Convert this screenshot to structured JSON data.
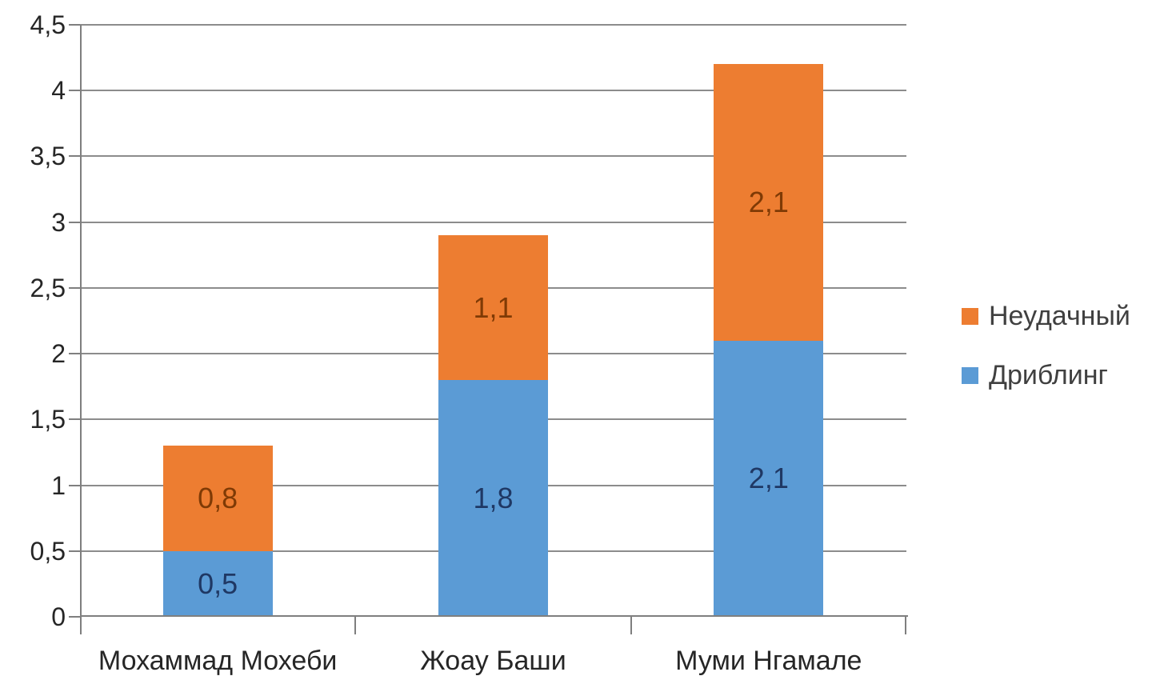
{
  "chart_data": {
    "type": "bar",
    "stacked": true,
    "title": "",
    "categories": [
      "Мохаммад Мохеби",
      "Жоау Баши",
      "Муми Нгамале"
    ],
    "series": [
      {
        "name": "Дриблинг",
        "color": "#5B9BD5",
        "label_color": "#1F3864",
        "values": [
          0.5,
          1.8,
          2.1
        ],
        "labels": [
          "0,5",
          "1,8",
          "2,1"
        ]
      },
      {
        "name": "Неудачный",
        "color": "#ED7D31",
        "label_color": "#7F3A05",
        "values": [
          0.8,
          1.1,
          2.1
        ],
        "labels": [
          "0,8",
          "1,1",
          "2,1"
        ]
      }
    ],
    "legend": [
      {
        "label": "Неудачный",
        "color": "#ED7D31"
      },
      {
        "label": "Дриблинг",
        "color": "#5B9BD5"
      }
    ],
    "legend_position": "right",
    "ylim": [
      0,
      4.5
    ],
    "grid": true,
    "y_ticks": [
      {
        "value": 0,
        "label": "0"
      },
      {
        "value": 0.5,
        "label": "0,5"
      },
      {
        "value": 1,
        "label": "1"
      },
      {
        "value": 1.5,
        "label": "1,5"
      },
      {
        "value": 2,
        "label": "2"
      },
      {
        "value": 2.5,
        "label": "2,5"
      },
      {
        "value": 3,
        "label": "3"
      },
      {
        "value": 3.5,
        "label": "3,5"
      },
      {
        "value": 4,
        "label": "4"
      },
      {
        "value": 4.5,
        "label": "4,5"
      }
    ],
    "colors": {
      "gridline": "#8C8C8C",
      "axis": "#7F7F7F",
      "axis_text": "#262626",
      "legend_text": "#404040",
      "background": "#FFFFFF"
    }
  }
}
